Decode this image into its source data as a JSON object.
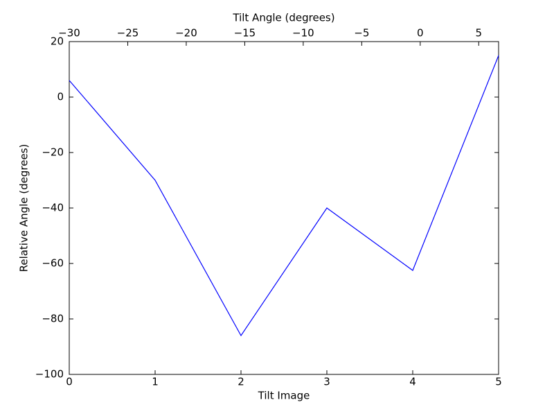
{
  "chart_data": {
    "type": "line",
    "xlabel": "Tilt Image",
    "ylabel": "Relative Angle (degrees)",
    "x2label": "Tilt Angle (degrees)",
    "x": [
      0,
      1,
      2,
      3,
      4,
      5
    ],
    "series": [
      {
        "color": "#0000ff",
        "values": [
          6,
          -30,
          -86,
          -40,
          -62.5,
          15
        ]
      }
    ],
    "xlim": [
      0,
      5
    ],
    "xticks": [
      0,
      1,
      2,
      3,
      4,
      5
    ],
    "ylim": [
      -100,
      20
    ],
    "yticks": [
      {
        "value": -100,
        "label": "−100"
      },
      {
        "value": -80,
        "label": "−80"
      },
      {
        "value": -60,
        "label": "−60"
      },
      {
        "value": -40,
        "label": "−40"
      },
      {
        "value": -20,
        "label": "−20"
      },
      0,
      20
    ],
    "x2lim": [
      -30,
      6.7
    ],
    "x2ticks": [
      {
        "value": -30,
        "label": "−30"
      },
      {
        "value": -25,
        "label": "−25"
      },
      {
        "value": -20,
        "label": "−20"
      },
      {
        "value": -15,
        "label": "−15"
      },
      {
        "value": -10,
        "label": "−10"
      },
      {
        "value": -5,
        "label": "−5"
      },
      0,
      5
    ],
    "grid": false
  }
}
